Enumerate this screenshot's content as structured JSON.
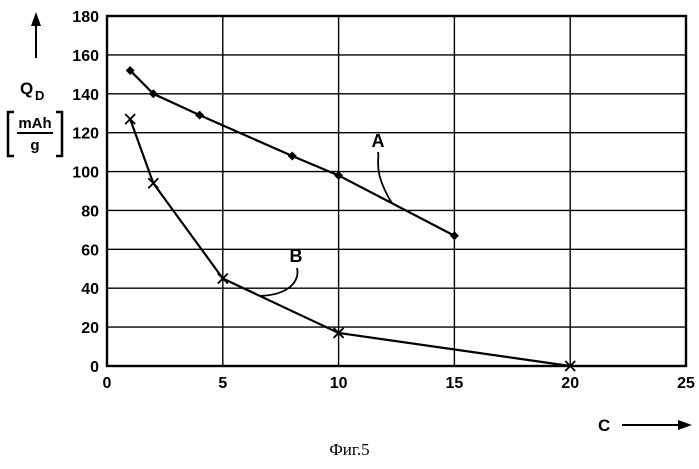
{
  "caption": "Фиг.5",
  "chart_data": {
    "type": "line",
    "xlabel": "C",
    "ylabel": "Q",
    "ylabel_sub": "D",
    "yunit_numerator": "mAh",
    "yunit_denominator": "g",
    "xlim": [
      0,
      25
    ],
    "ylim": [
      0,
      180
    ],
    "x_ticks": [
      0,
      5,
      10,
      15,
      20,
      25
    ],
    "y_ticks": [
      0,
      20,
      40,
      60,
      80,
      100,
      120,
      140,
      160,
      180
    ],
    "grid": true,
    "series": [
      {
        "name": "A",
        "marker": "diamond",
        "x": [
          1,
          2,
          4,
          8,
          10,
          15
        ],
        "y": [
          152,
          140,
          129,
          108,
          98,
          67
        ]
      },
      {
        "name": "B",
        "marker": "x",
        "x": [
          1,
          2,
          5,
          10,
          20
        ],
        "y": [
          127,
          94,
          45,
          17,
          0
        ]
      }
    ]
  }
}
